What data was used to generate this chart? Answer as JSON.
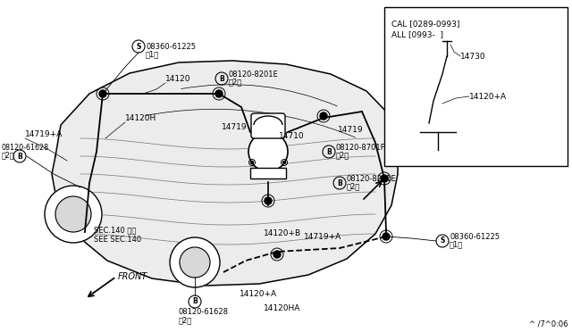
{
  "bg_color": "#ffffff",
  "inset_label1": "CAL [0289-0993]",
  "inset_label2": "ALL [0993-  ]",
  "watermark": "^ /7^0:06",
  "sec_note1": "SEC.140 参照",
  "sec_note2": "SEE SEC.140",
  "front_text": "FRONT"
}
